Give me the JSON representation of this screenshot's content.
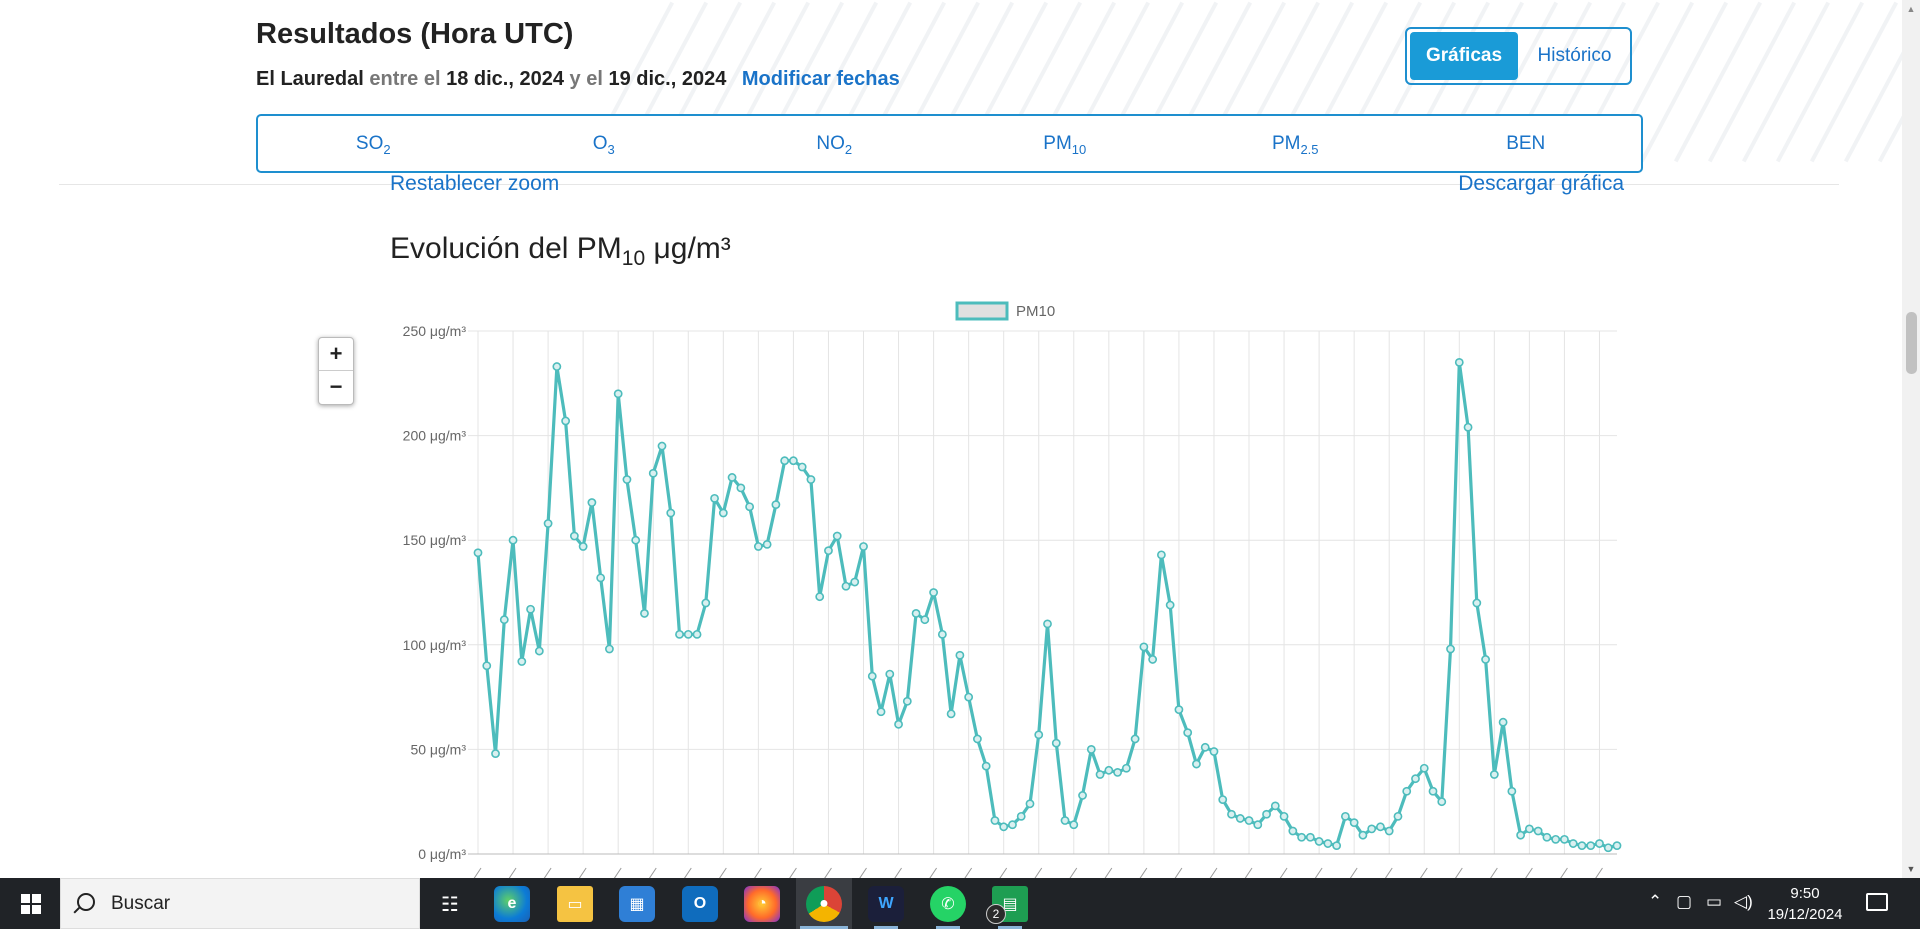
{
  "header": {
    "title": "Resultados (Hora UTC)",
    "station": "El Lauredal",
    "between": "entre el",
    "date_from": "18 dic., 2024",
    "and": "y el",
    "date_to": "19 dic., 2024",
    "modify_link": "Modificar fechas"
  },
  "view_toggle": {
    "active": "Gráficas",
    "inactive": "Histórico"
  },
  "pollutants": [
    {
      "base": "SO",
      "sub": "2"
    },
    {
      "base": "O",
      "sub": "3"
    },
    {
      "base": "NO",
      "sub": "2"
    },
    {
      "base": "PM",
      "sub": "10"
    },
    {
      "base": "PM",
      "sub": "2.5"
    },
    {
      "base": "BEN",
      "sub": ""
    }
  ],
  "chart_controls": {
    "reset_zoom": "Restablecer zoom",
    "download": "Descargar gráfica"
  },
  "chart_title": {
    "prefix": "Evolución del PM",
    "sub": "10",
    "unit": " μg/m³"
  },
  "zoom": {
    "in": "+",
    "out": "−"
  },
  "colors": {
    "accent": "#1a9bd7",
    "line": "#4dbcbc",
    "link": "#1a73c8",
    "taskbar": "#202327"
  },
  "chart_data": {
    "type": "line",
    "legend": "PM10",
    "legend_position": "top-center",
    "grid": true,
    "ylim": [
      0,
      250
    ],
    "y_ticks": [
      "0 μg/m³",
      "50 μg/m³",
      "100 μg/m³",
      "150 μg/m³",
      "200 μg/m³",
      "250 μg/m³"
    ],
    "x_range": [
      "18-12-2024 00:00 H",
      "19-12-2024 08:00 H"
    ],
    "series": [
      {
        "name": "PM10",
        "values": [
          144,
          90,
          48,
          112,
          150,
          92,
          117,
          97,
          158,
          233,
          207,
          152,
          147,
          168,
          132,
          98,
          220,
          179,
          150,
          115,
          182,
          195,
          163,
          105,
          105,
          105,
          120,
          170,
          163,
          180,
          175,
          166,
          147,
          148,
          167,
          188,
          188,
          185,
          179,
          123,
          145,
          152,
          128,
          130,
          147,
          85,
          68,
          86,
          62,
          73,
          115,
          112,
          125,
          105,
          67,
          95,
          75,
          55,
          42,
          16,
          13,
          14,
          18,
          24,
          57,
          110,
          53,
          16,
          14,
          28,
          50,
          38,
          40,
          39,
          41,
          55,
          99,
          93,
          143,
          119,
          69,
          58,
          43,
          51,
          49,
          26,
          19,
          17,
          16,
          14,
          19,
          23,
          18,
          11,
          8,
          8,
          6,
          5,
          4,
          18,
          15,
          9,
          12,
          13,
          11,
          18,
          30,
          36,
          41,
          30,
          25,
          98,
          235,
          204,
          120,
          93,
          38,
          63,
          30,
          9,
          12,
          11,
          8,
          7,
          7,
          5,
          4,
          4,
          5,
          3,
          4
        ]
      }
    ]
  },
  "taskbar": {
    "search_placeholder": "Buscar",
    "whatsapp_badge": "2",
    "time": "9:50",
    "date": "19/12/2024",
    "apps": [
      "task-view",
      "edge",
      "file-explorer",
      "microsoft-store",
      "outlook",
      "firefox",
      "chrome",
      "webex",
      "whatsapp",
      "google-sheets"
    ]
  }
}
